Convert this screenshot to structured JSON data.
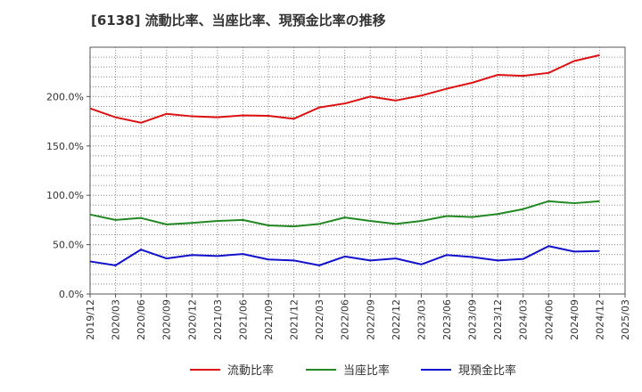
{
  "chart_data": {
    "type": "line",
    "title": "[6138]  流動比率、当座比率、現預金比率の推移",
    "xlabel": "",
    "ylabel": "",
    "ylim": [
      0,
      250
    ],
    "yticks": [
      0,
      50,
      100,
      150,
      200
    ],
    "ytick_labels": [
      "0.0%",
      "50.0%",
      "100.0%",
      "150.0%",
      "200.0%"
    ],
    "grid": true,
    "legend_position": "bottom",
    "categories": [
      "2019/12",
      "2020/03",
      "2020/06",
      "2020/09",
      "2020/12",
      "2021/03",
      "2021/06",
      "2021/09",
      "2021/12",
      "2022/03",
      "2022/06",
      "2022/09",
      "2022/12",
      "2023/03",
      "2023/06",
      "2023/09",
      "2023/12",
      "2024/03",
      "2024/06",
      "2024/09",
      "2024/12",
      "2025/03"
    ],
    "series": [
      {
        "name": "流動比率",
        "color": "#dd1111",
        "values": [
          188,
          179,
          173.5,
          182.5,
          180,
          179,
          181,
          180.5,
          177.5,
          189,
          193,
          200,
          196,
          201,
          208,
          214,
          222,
          221,
          224,
          236,
          242,
          null
        ]
      },
      {
        "name": "当座比率",
        "color": "#228822",
        "values": [
          80.5,
          75,
          77,
          70.5,
          72,
          74,
          75,
          69.5,
          68.5,
          71,
          77.5,
          74,
          71,
          74,
          79,
          78,
          81,
          86,
          94,
          92,
          94,
          null
        ]
      },
      {
        "name": "現預金比率",
        "color": "#1111cc",
        "values": [
          33,
          29,
          45,
          36,
          39.5,
          38.5,
          40.5,
          35,
          34,
          29,
          38,
          34,
          36,
          30,
          39.5,
          37.5,
          34,
          35.5,
          48.5,
          43,
          43.5,
          null
        ]
      }
    ]
  }
}
